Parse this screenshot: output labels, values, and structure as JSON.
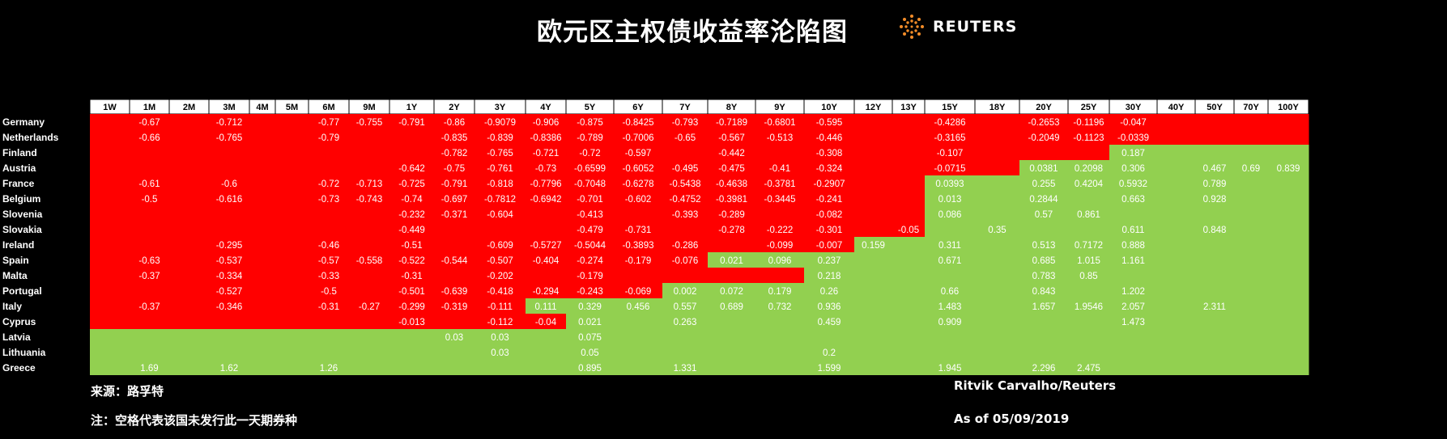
{
  "title": "欧元区主权债收益率沦陷图",
  "logo": {
    "text": "REUTERS",
    "icon": "reuters-dot-logo-icon"
  },
  "colors": {
    "negative": "#ff0000",
    "positive": "#92d050",
    "header_bg": "#ffffff",
    "header_text": "#000000",
    "background": "#000000"
  },
  "footer": {
    "source": "来源：路孚特",
    "note": "注：空格代表该国未发行此一天期券种",
    "credit": "Ritvik Carvalho/Reuters",
    "as_of": "As of 05/09/2019"
  },
  "chart_data": {
    "type": "heatmap",
    "title": "欧元区主权债收益率沦陷图",
    "columns": [
      "1W",
      "1M",
      "2M",
      "3M",
      "4M",
      "5M",
      "6M",
      "9M",
      "1Y",
      "2Y",
      "3Y",
      "4Y",
      "5Y",
      "6Y",
      "7Y",
      "8Y",
      "9Y",
      "10Y",
      "12Y",
      "13Y",
      "15Y",
      "18Y",
      "20Y",
      "25Y",
      "30Y",
      "40Y",
      "50Y",
      "70Y",
      "100Y"
    ],
    "rows": [
      {
        "country": "Germany",
        "values": [
          null,
          "-0.67",
          null,
          "-0.712",
          null,
          null,
          "-0.77",
          "-0.755",
          "-0.791",
          "-0.86",
          "-0.9079",
          "-0.906",
          "-0.875",
          "-0.8425",
          "-0.793",
          "-0.7189",
          "-0.6801",
          "-0.595",
          null,
          null,
          "-0.4286",
          null,
          "-0.2653",
          "-0.1196",
          "-0.047",
          null,
          null,
          null,
          null
        ],
        "fill_negative_through": "100Y"
      },
      {
        "country": "Netherlands",
        "values": [
          null,
          "-0.66",
          null,
          "-0.765",
          null,
          null,
          "-0.79",
          null,
          null,
          "-0.835",
          "-0.839",
          "-0.8386",
          "-0.789",
          "-0.7006",
          "-0.65",
          "-0.567",
          "-0.513",
          "-0.446",
          null,
          null,
          "-0.3165",
          null,
          "-0.2049",
          "-0.1123",
          "-0.0339",
          null,
          null,
          null,
          null
        ],
        "fill_negative_through": "100Y"
      },
      {
        "country": "Finland",
        "values": [
          null,
          null,
          null,
          null,
          null,
          null,
          null,
          null,
          null,
          "-0.782",
          "-0.765",
          "-0.721",
          "-0.72",
          "-0.597",
          null,
          "-0.442",
          null,
          "-0.308",
          null,
          null,
          "-0.107",
          null,
          null,
          null,
          "0.187",
          null,
          null,
          null,
          null
        ],
        "fill_negative_through": "25Y"
      },
      {
        "country": "Austria",
        "values": [
          null,
          null,
          null,
          null,
          null,
          null,
          null,
          null,
          "-0.642",
          "-0.75",
          "-0.761",
          "-0.73",
          "-0.6599",
          "-0.6052",
          "-0.495",
          "-0.475",
          "-0.41",
          "-0.324",
          null,
          null,
          "-0.0715",
          null,
          "0.0381",
          "0.2098",
          "0.306",
          null,
          "0.467",
          "0.69",
          "0.839"
        ],
        "fill_negative_through": "18Y"
      },
      {
        "country": "France",
        "values": [
          null,
          "-0.61",
          null,
          "-0.6",
          null,
          null,
          "-0.72",
          "-0.713",
          "-0.725",
          "-0.791",
          "-0.818",
          "-0.7796",
          "-0.7048",
          "-0.6278",
          "-0.5438",
          "-0.4638",
          "-0.3781",
          "-0.2907",
          null,
          null,
          "0.0393",
          null,
          "0.255",
          "0.4204",
          "0.5932",
          null,
          "0.789",
          null,
          null
        ],
        "fill_negative_through": "13Y"
      },
      {
        "country": "Belgium",
        "values": [
          null,
          "-0.5",
          null,
          "-0.616",
          null,
          null,
          "-0.73",
          "-0.743",
          "-0.74",
          "-0.697",
          "-0.7812",
          "-0.6942",
          "-0.701",
          "-0.602",
          "-0.4752",
          "-0.3981",
          "-0.3445",
          "-0.241",
          null,
          null,
          "0.013",
          null,
          "0.2844",
          null,
          "0.663",
          null,
          "0.928",
          null,
          null
        ],
        "fill_negative_through": "13Y"
      },
      {
        "country": "Slovenia",
        "values": [
          null,
          null,
          null,
          null,
          null,
          null,
          null,
          null,
          "-0.232",
          "-0.371",
          "-0.604",
          null,
          "-0.413",
          null,
          "-0.393",
          "-0.289",
          null,
          "-0.082",
          null,
          null,
          "0.086",
          null,
          "0.57",
          "0.861",
          null,
          null,
          null,
          null,
          null
        ],
        "fill_negative_through": "13Y"
      },
      {
        "country": "Slovakia",
        "values": [
          null,
          null,
          null,
          null,
          null,
          null,
          null,
          null,
          "-0.449",
          null,
          null,
          null,
          "-0.479",
          "-0.731",
          null,
          "-0.278",
          "-0.222",
          "-0.301",
          null,
          "-0.05",
          null,
          "0.35",
          null,
          null,
          "0.611",
          null,
          "0.848",
          null,
          null
        ],
        "fill_negative_through": "13Y"
      },
      {
        "country": "Ireland",
        "values": [
          null,
          null,
          null,
          "-0.295",
          null,
          null,
          "-0.46",
          null,
          "-0.51",
          null,
          "-0.609",
          "-0.5727",
          "-0.5044",
          "-0.3893",
          "-0.286",
          null,
          "-0.099",
          "-0.007",
          "0.159",
          null,
          "0.311",
          null,
          "0.513",
          "0.7172",
          "0.888",
          null,
          null,
          null,
          null
        ],
        "fill_negative_through": "10Y"
      },
      {
        "country": "Spain",
        "values": [
          null,
          "-0.63",
          null,
          "-0.537",
          null,
          null,
          "-0.57",
          "-0.558",
          "-0.522",
          "-0.544",
          "-0.507",
          "-0.404",
          "-0.274",
          "-0.179",
          "-0.076",
          "0.021",
          "0.096",
          "0.237",
          null,
          null,
          "0.671",
          null,
          "0.685",
          "1.015",
          "1.161",
          null,
          null,
          null,
          null
        ],
        "fill_negative_through": "7Y"
      },
      {
        "country": "Malta",
        "values": [
          null,
          "-0.37",
          null,
          "-0.334",
          null,
          null,
          "-0.33",
          null,
          "-0.31",
          null,
          "-0.202",
          null,
          "-0.179",
          null,
          null,
          null,
          null,
          "0.218",
          null,
          null,
          null,
          null,
          "0.783",
          "0.85",
          null,
          null,
          null,
          null,
          null
        ],
        "fill_negative_through": "9Y"
      },
      {
        "country": "Portugal",
        "values": [
          null,
          null,
          null,
          "-0.527",
          null,
          null,
          "-0.5",
          null,
          "-0.501",
          "-0.639",
          "-0.418",
          "-0.294",
          "-0.243",
          "-0.069",
          "0.002",
          "0.072",
          "0.179",
          "0.26",
          null,
          null,
          "0.66",
          null,
          "0.843",
          null,
          "1.202",
          null,
          null,
          null,
          null
        ],
        "fill_negative_through": "6Y"
      },
      {
        "country": "Italy",
        "values": [
          null,
          "-0.37",
          null,
          "-0.346",
          null,
          null,
          "-0.31",
          "-0.27",
          "-0.299",
          "-0.319",
          "-0.111",
          "0.111",
          "0.329",
          "0.456",
          "0.557",
          "0.689",
          "0.732",
          "0.936",
          null,
          null,
          "1.483",
          null,
          "1.657",
          "1.9546",
          "2.057",
          null,
          "2.311",
          null,
          null
        ],
        "fill_negative_through": "3Y"
      },
      {
        "country": "Cyprus",
        "values": [
          null,
          null,
          null,
          null,
          null,
          null,
          null,
          null,
          "-0.013",
          null,
          "-0.112",
          "-0.04",
          "0.021",
          null,
          "0.263",
          null,
          null,
          "0.459",
          null,
          null,
          "0.909",
          null,
          null,
          null,
          "1.473",
          null,
          null,
          null,
          null
        ],
        "fill_negative_through": "4Y"
      },
      {
        "country": "Latvia",
        "values": [
          null,
          null,
          null,
          null,
          null,
          null,
          null,
          null,
          null,
          "0.03",
          "0.03",
          null,
          "0.075",
          null,
          null,
          null,
          null,
          null,
          null,
          null,
          null,
          null,
          null,
          null,
          null,
          null,
          null,
          null,
          null
        ],
        "fill_negative_through": null
      },
      {
        "country": "Lithuania",
        "values": [
          null,
          null,
          null,
          null,
          null,
          null,
          null,
          null,
          null,
          null,
          "0.03",
          null,
          "0.05",
          null,
          null,
          null,
          null,
          "0.2",
          null,
          null,
          null,
          null,
          null,
          null,
          null,
          null,
          null,
          null,
          null
        ],
        "fill_negative_through": null
      },
      {
        "country": "Greece",
        "values": [
          null,
          "1.69",
          null,
          "1.62",
          null,
          null,
          "1.26",
          null,
          null,
          null,
          null,
          null,
          "0.895",
          null,
          "1.331",
          null,
          null,
          "1.599",
          null,
          null,
          "1.945",
          null,
          "2.296",
          "2.475",
          null,
          null,
          null,
          null,
          null
        ],
        "fill_negative_through": null
      }
    ]
  }
}
